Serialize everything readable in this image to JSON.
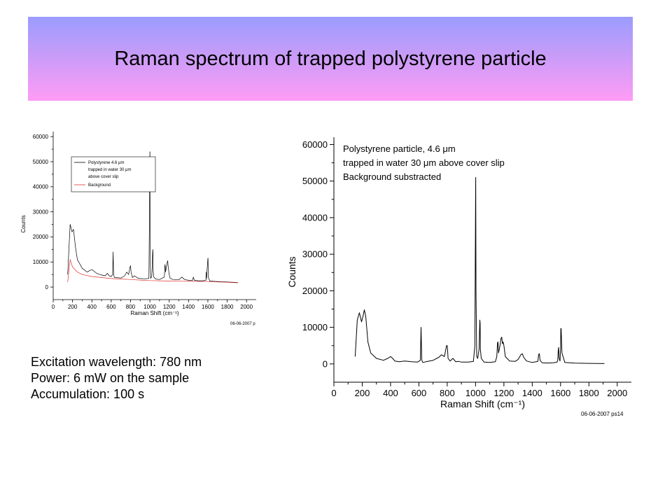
{
  "slide": {
    "title": "Raman spectrum of trapped polystyrene particle",
    "colors": {
      "banner_top": "#9b9cff",
      "banner_bottom": "#ff9cf6",
      "sample_line": "#000000",
      "background_line": "#e03030"
    }
  },
  "info": [
    "Excitation wavelength: 780 nm",
    "Power: 6 mW on the sample",
    "Accumulation: 100 s"
  ],
  "chart_data": [
    {
      "type": "line",
      "xlabel": "Raman Shift (cm⁻¹)",
      "ylabel": "Counts",
      "xlim": [
        0,
        2100
      ],
      "ylim": [
        -5000,
        62000
      ],
      "xticks": [
        0,
        200,
        400,
        600,
        800,
        1000,
        1200,
        1400,
        1600,
        1800,
        2000
      ],
      "yticks": [
        0,
        10000,
        20000,
        30000,
        40000,
        50000,
        60000
      ],
      "stamp": "06-06-2007 p",
      "legend_position": "top-left",
      "legend": [
        "Polystyrene 4.6 μm",
        "trapped in water 30 μm",
        "above cover slip",
        "Background"
      ],
      "series": [
        {
          "name": "Polystyrene 4.6 μm trapped in water 30 μm above cover slip",
          "color": "#000000",
          "x": [
            150,
            175,
            195,
            210,
            230,
            250,
            300,
            350,
            400,
            450,
            500,
            540,
            560,
            580,
            600,
            615,
            620,
            625,
            632,
            650,
            700,
            740,
            760,
            780,
            795,
            800,
            805,
            820,
            840,
            880,
            900,
            950,
            990,
            995,
            1000,
            1001,
            1003,
            1008,
            1020,
            1030,
            1032,
            1034,
            1040,
            1060,
            1100,
            1150,
            1155,
            1158,
            1162,
            1180,
            1185,
            1190,
            1200,
            1210,
            1240,
            1300,
            1330,
            1360,
            1400,
            1440,
            1450,
            1460,
            1500,
            1550,
            1580,
            1583,
            1586,
            1600,
            1602,
            1604,
            1620,
            1700,
            1800,
            1910
          ],
          "y": [
            5000,
            25000,
            22000,
            23000,
            16000,
            11000,
            7500,
            6000,
            7000,
            5500,
            4800,
            4500,
            5500,
            4500,
            4200,
            5000,
            14000,
            5000,
            3900,
            3800,
            3600,
            4500,
            6000,
            5000,
            8000,
            8500,
            6000,
            3800,
            4500,
            3500,
            3400,
            3300,
            3500,
            25000,
            54000,
            54000,
            10000,
            3400,
            4500,
            15000,
            14000,
            7000,
            4000,
            3200,
            3000,
            4000,
            8500,
            9000,
            6000,
            10000,
            10500,
            8000,
            5000,
            3500,
            3000,
            2900,
            4000,
            3000,
            2700,
            2600,
            4000,
            2700,
            2500,
            2500,
            2800,
            6000,
            3500,
            11500,
            11500,
            4000,
            2400,
            2200,
            2000,
            1800
          ]
        },
        {
          "name": "Background",
          "color": "#e03030",
          "x": [
            150,
            175,
            200,
            250,
            300,
            400,
            500,
            600,
            700,
            800,
            900,
            1000,
            1200,
            1400,
            1600,
            1800,
            1910
          ],
          "y": [
            2000,
            11000,
            8000,
            6000,
            5000,
            4200,
            3800,
            3400,
            3200,
            3000,
            2800,
            2600,
            2400,
            2300,
            2200,
            1900,
            1700
          ]
        }
      ]
    },
    {
      "type": "line",
      "xlabel": "Raman Shift (cm⁻¹)",
      "ylabel": "Counts",
      "xlim": [
        0,
        2100
      ],
      "ylim": [
        -5000,
        62000
      ],
      "xticks": [
        0,
        200,
        400,
        600,
        800,
        1000,
        1200,
        1400,
        1600,
        1800,
        2000
      ],
      "yticks": [
        0,
        10000,
        20000,
        30000,
        40000,
        50000,
        60000
      ],
      "stamp": "06-06-2007 ps14",
      "annotation": [
        "Polystyrene particle, 4.6 μm",
        "trapped in water 30 μm above cover slip",
        "Background substracted"
      ],
      "series": [
        {
          "name": "",
          "color": "#000000",
          "x": [
            150,
            165,
            180,
            195,
            205,
            215,
            225,
            240,
            260,
            300,
            350,
            380,
            400,
            415,
            430,
            460,
            500,
            550,
            590,
            610,
            615,
            620,
            625,
            630,
            650,
            700,
            740,
            760,
            780,
            785,
            790,
            795,
            800,
            803,
            806,
            820,
            840,
            860,
            880,
            900,
            950,
            985,
            995,
            1000,
            1001,
            1003,
            1008,
            1015,
            1025,
            1030,
            1032,
            1034,
            1040,
            1060,
            1100,
            1140,
            1150,
            1155,
            1158,
            1162,
            1170,
            1180,
            1185,
            1190,
            1195,
            1200,
            1210,
            1240,
            1280,
            1300,
            1320,
            1330,
            1340,
            1360,
            1400,
            1440,
            1445,
            1450,
            1455,
            1470,
            1500,
            1550,
            1575,
            1580,
            1583,
            1586,
            1590,
            1596,
            1600,
            1602,
            1604,
            1610,
            1630,
            1700,
            1800,
            1910
          ],
          "y": [
            2000,
            12000,
            14000,
            11500,
            13000,
            14800,
            13000,
            6000,
            3000,
            1500,
            1000,
            1500,
            2000,
            1500,
            800,
            600,
            800,
            600,
            500,
            1000,
            10000,
            1200,
            500,
            400,
            600,
            1000,
            1800,
            2500,
            2000,
            3000,
            4000,
            5000,
            5000,
            3500,
            1500,
            800,
            1500,
            600,
            700,
            500,
            500,
            700,
            5000,
            45000,
            51000,
            20000,
            2000,
            1500,
            4000,
            12000,
            11000,
            4000,
            1500,
            500,
            400,
            600,
            2000,
            5800,
            6000,
            3000,
            4500,
            7000,
            7300,
            5500,
            6000,
            5000,
            2000,
            800,
            700,
            1200,
            2500,
            2800,
            1800,
            800,
            400,
            700,
            2500,
            2800,
            1000,
            300,
            250,
            300,
            500,
            1000,
            3500,
            4500,
            1500,
            800,
            4000,
            9700,
            9700,
            3000,
            400,
            200,
            150,
            100
          ]
        }
      ]
    }
  ]
}
